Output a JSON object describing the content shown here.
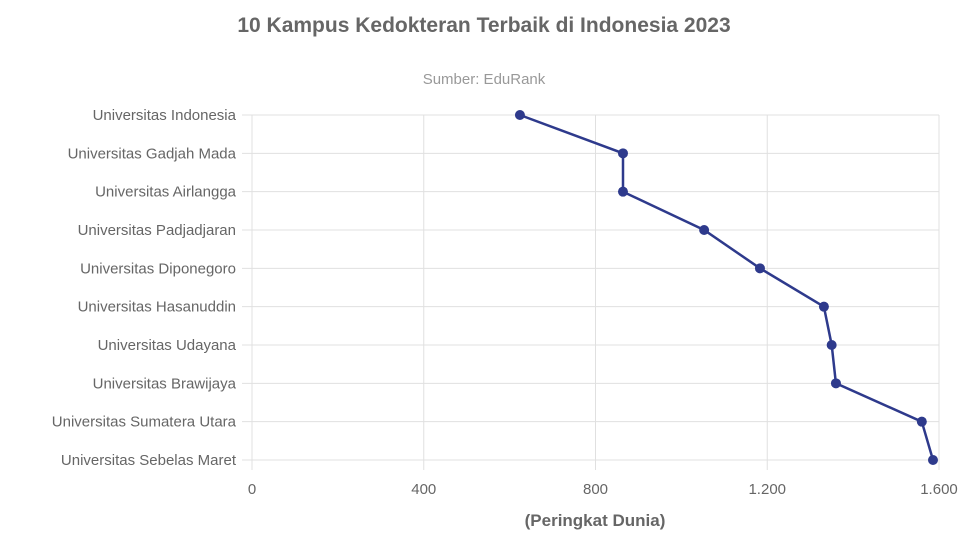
{
  "chart_data": {
    "type": "line",
    "orientation": "horizontal",
    "title": "10 Kampus Kedokteran Terbaik di Indonesia 2023",
    "subtitle": "Sumber: EduRank",
    "xlabel": "(Peringkat Dunia)",
    "ylabel": "",
    "xlim": [
      0,
      1600
    ],
    "x_ticks": [
      "0",
      "400",
      "800",
      "1.200",
      "1.600"
    ],
    "grid": true,
    "legend": "none",
    "categories": [
      "Universitas Indonesia",
      "Universitas Gadjah Mada",
      "Universitas Airlangga",
      "Universitas Padjadjaran",
      "Universitas Diponegoro",
      "Universitas Hasanuddin",
      "Universitas Udayana",
      "Universitas Brawijaya",
      "Universitas Sumatera Utara",
      "Universitas Sebelas Maret"
    ],
    "series": [
      {
        "name": "Peringkat Dunia",
        "color": "#2e3a8c",
        "values": [
          624,
          864,
          864,
          1053,
          1183,
          1332,
          1350,
          1360,
          1560,
          1586
        ]
      }
    ]
  },
  "colors": {
    "line": "#2e3a8c",
    "grid": "#e0e0e0",
    "axis_text": "#666666",
    "subtitle": "#999999"
  }
}
